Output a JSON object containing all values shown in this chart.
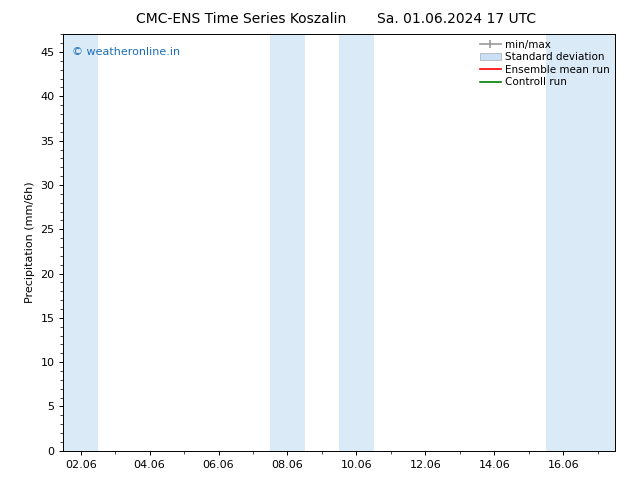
{
  "title_left": "CMC-ENS Time Series Koszalin",
  "title_right": "Sa. 01.06.2024 17 UTC",
  "ylabel": "Precipitation (mm/6h)",
  "watermark": "© weatheronline.in",
  "watermark_color": "#1a6eb5",
  "xlim_left": 1.5,
  "xlim_right": 17.5,
  "ylim_bottom": 0,
  "ylim_top": 47,
  "yticks": [
    0,
    5,
    10,
    15,
    20,
    25,
    30,
    35,
    40,
    45
  ],
  "xtick_labels": [
    "02.06",
    "04.06",
    "06.06",
    "08.06",
    "10.06",
    "12.06",
    "14.06",
    "16.06"
  ],
  "xtick_positions": [
    2,
    4,
    6,
    8,
    10,
    12,
    14,
    16
  ],
  "bg_color": "#ffffff",
  "shaded_regions": [
    {
      "x_start": 1.5,
      "x_end": 2.5,
      "color": "#daeaf7"
    },
    {
      "x_start": 7.5,
      "x_end": 8.5,
      "color": "#daeaf7"
    },
    {
      "x_start": 9.5,
      "x_end": 10.5,
      "color": "#daeaf7"
    },
    {
      "x_start": 15.5,
      "x_end": 16.5,
      "color": "#daeaf7"
    },
    {
      "x_start": 16.5,
      "x_end": 17.5,
      "color": "#daeaf7"
    }
  ],
  "legend_labels": [
    "min/max",
    "Standard deviation",
    "Ensemble mean run",
    "Controll run"
  ],
  "legend_colors": [
    "#aaaaaa",
    "#c8dff5",
    "#ff0000",
    "#008000"
  ],
  "font_size_title": 10,
  "font_size_axis": 8,
  "font_size_legend": 7.5,
  "font_size_watermark": 8
}
